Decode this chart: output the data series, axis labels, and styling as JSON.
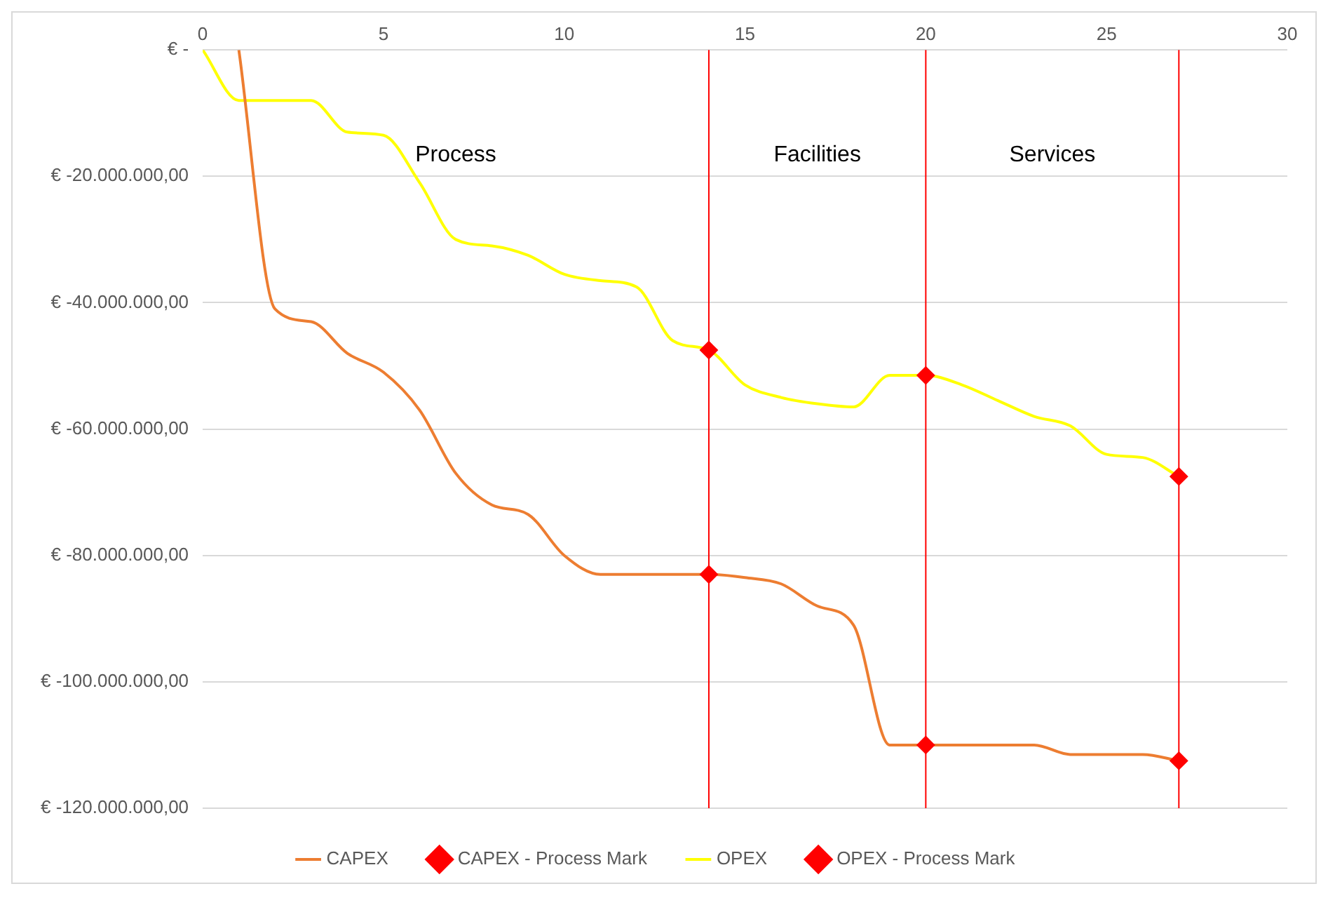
{
  "chart_data": {
    "type": "line",
    "x": [
      0,
      1,
      2,
      3,
      4,
      5,
      6,
      7,
      8,
      9,
      10,
      11,
      12,
      13,
      14,
      15,
      16,
      17,
      18,
      19,
      20,
      21,
      22,
      23,
      24,
      25,
      26,
      27
    ],
    "series": [
      {
        "name": "CAPEX",
        "color": "#ed7d31",
        "marker": "none",
        "line_style": "solid",
        "values": [
          null,
          0,
          -41000000,
          -43000000,
          -48000000,
          -51000000,
          -57000000,
          -67000000,
          -72000000,
          -73500000,
          -80000000,
          -83000000,
          -83000000,
          -83000000,
          -83000000,
          -83500000,
          -84500000,
          -88000000,
          -91000000,
          -110000000,
          -110000000,
          -110000000,
          -110000000,
          -110000000,
          -111500000,
          -111500000,
          -111500000,
          -112500000
        ]
      },
      {
        "name": "CAPEX - Process Mark",
        "type": "scatter",
        "color": "#ff0000",
        "marker": "diamond",
        "x": [
          14,
          20,
          27
        ],
        "values": [
          -83000000,
          -110000000,
          -112500000
        ]
      },
      {
        "name": "OPEX",
        "color": "#ffff00",
        "marker": "none",
        "line_style": "solid",
        "values": [
          0,
          -8000000,
          -8000000,
          -8000000,
          -13000000,
          -13500000,
          -21000000,
          -30000000,
          -31000000,
          -32500000,
          -35500000,
          -36500000,
          -37500000,
          -46000000,
          -47500000,
          -53000000,
          -55000000,
          -56000000,
          -56500000,
          -51500000,
          -51500000,
          -53000000,
          -55500000,
          -58000000,
          -59500000,
          -64000000,
          -64500000,
          -67500000
        ]
      },
      {
        "name": "OPEX - Process Mark",
        "type": "scatter",
        "color": "#ff0000",
        "marker": "diamond",
        "x": [
          14,
          20,
          27
        ],
        "values": [
          -47500000,
          -51500000,
          -67500000
        ]
      }
    ],
    "xlim": [
      0,
      30
    ],
    "xticks": [
      0,
      5,
      10,
      15,
      20,
      25,
      30
    ],
    "ylim": [
      -120000000,
      0
    ],
    "yticks": [
      {
        "value": 0,
        "label": "€ -"
      },
      {
        "value": -20000000,
        "label": "€ -20.000.000,00"
      },
      {
        "value": -40000000,
        "label": "€ -40.000.000,00"
      },
      {
        "value": -60000000,
        "label": "€ -60.000.000,00"
      },
      {
        "value": -80000000,
        "label": "€ -80.000.000,00"
      },
      {
        "value": -100000000,
        "label": "€ -100.000.000,00"
      },
      {
        "value": -120000000,
        "label": "€ -120.000.000,00"
      }
    ],
    "ref_lines": [
      {
        "axis": "x",
        "value": 14,
        "color": "#ff0000"
      },
      {
        "axis": "x",
        "value": 20,
        "color": "#ff0000"
      },
      {
        "axis": "x",
        "value": 27,
        "color": "#ff0000"
      }
    ],
    "annotations": [
      "Process",
      "Facilities",
      "Services"
    ],
    "grid": "y",
    "legend": "bottom"
  }
}
